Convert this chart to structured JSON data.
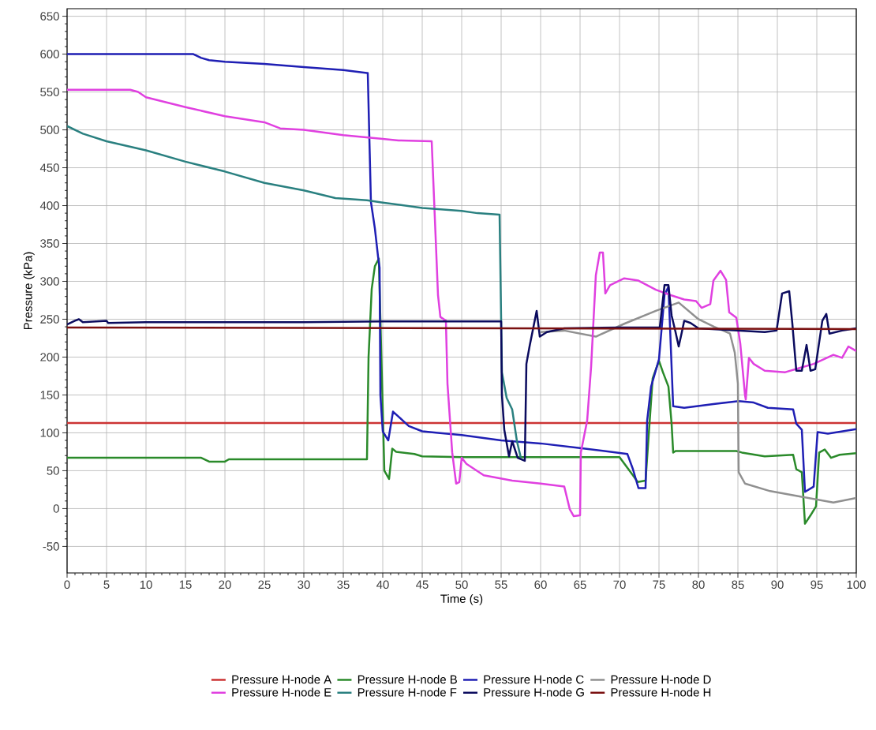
{
  "chart_data": {
    "type": "line",
    "xlabel": "Time (s)",
    "ylabel": "Pressure (kPa)",
    "xlim": [
      0,
      100
    ],
    "ylim": [
      -85,
      660
    ],
    "xticks": [
      0,
      5,
      10,
      15,
      20,
      25,
      30,
      35,
      40,
      45,
      50,
      55,
      60,
      65,
      70,
      75,
      80,
      85,
      90,
      95,
      100
    ],
    "yticks": [
      -50,
      0,
      50,
      100,
      150,
      200,
      250,
      300,
      350,
      400,
      450,
      500,
      550,
      600,
      650
    ],
    "grid": true,
    "legend": "bottom",
    "series": [
      {
        "name": "Pressure H-node A",
        "color": "#cc3333",
        "x": [
          0,
          100
        ],
        "values": [
          113,
          113
        ]
      },
      {
        "name": "Pressure H-node B",
        "color": "#2a8a2a",
        "x": [
          0,
          17,
          18,
          20,
          20.5,
          38,
          38.2,
          38.6,
          39,
          39.5,
          40.2,
          40.8,
          41.2,
          41.7,
          44,
          45,
          50,
          60,
          70,
          71.7,
          72.3,
          73.3,
          74.2,
          75,
          75.5,
          76.2,
          76.6,
          76.8,
          77.1,
          84.8,
          85.5,
          88.4,
          92,
          92.4,
          93.1,
          93.5,
          94.2,
          94.9,
          95.3,
          96,
          96.8,
          97.9,
          100
        ],
        "values": [
          67,
          67,
          62,
          62,
          65,
          65,
          200,
          290,
          320,
          330,
          50,
          39,
          79,
          75,
          72,
          69,
          68,
          68,
          68,
          44,
          35,
          37,
          172,
          195,
          180,
          161,
          112,
          74,
          76,
          76,
          74,
          69,
          71,
          52,
          48,
          -20,
          -9,
          3,
          74,
          78,
          67,
          71,
          73
        ]
      },
      {
        "name": "Pressure H-node C",
        "color": "#1f1fb4",
        "x": [
          0,
          16,
          17,
          18,
          20,
          25,
          30,
          35,
          38,
          38.1,
          38.5,
          39,
          39.4,
          39.6,
          39.7,
          40,
          40.7,
          41.3,
          43.3,
          45,
          47,
          50,
          55,
          60,
          65,
          71,
          71.7,
          72.4,
          73.3,
          73.5,
          74,
          75,
          75.7,
          76.2,
          76.6,
          76.8,
          78.2,
          81.9,
          85.1,
          87,
          88.8,
          92,
          92.4,
          93.1,
          93.5,
          94.6,
          95.1,
          96.4,
          100
        ],
        "values": [
          600,
          600,
          595,
          592,
          590,
          587,
          583,
          579,
          575,
          575,
          405,
          370,
          333,
          318,
          150,
          102,
          90,
          128,
          109,
          102,
          100,
          97,
          90,
          86,
          80,
          72,
          52,
          27,
          27,
          116,
          161,
          197,
          282,
          293,
          187,
          135,
          133,
          138,
          142,
          140,
          133,
          131,
          112,
          104,
          22,
          29,
          101,
          99,
          105
        ]
      },
      {
        "name": "Pressure H-node D",
        "color": "#909090",
        "x": [
          60,
          63,
          67,
          70.6,
          74.6,
          77.5,
          80,
          82,
          84,
          84.6,
          85,
          85.1,
          85.9,
          89.1,
          92.8,
          97.1,
          100
        ],
        "values": [
          233,
          235,
          227,
          244,
          261,
          272,
          250,
          240,
          231,
          206,
          165,
          48,
          33,
          23,
          16,
          8,
          14
        ]
      },
      {
        "name": "Pressure H-node E",
        "color": "#e040e0",
        "x": [
          0,
          8,
          9,
          10,
          15,
          20,
          25,
          27,
          30,
          35,
          40,
          42,
          46.2,
          47,
          47.3,
          48,
          48.2,
          48.8,
          49.3,
          49.7,
          50,
          50.6,
          52.8,
          56.4,
          60,
          63,
          63.7,
          64.2,
          65,
          65.1,
          65.9,
          66.4,
          67,
          67.5,
          67.9,
          68.2,
          68.8,
          70.6,
          72.4,
          74.6,
          76.4,
          78.2,
          79.7,
          80.4,
          81.5,
          81.9,
          82.8,
          83.5,
          83.9,
          84.8,
          85.3,
          85.9,
          86,
          86.4,
          87,
          88.4,
          91,
          94.6,
          97.1,
          98.2,
          99,
          100
        ],
        "values": [
          553,
          553,
          550,
          543,
          530,
          518,
          510,
          502,
          500,
          493,
          488,
          486,
          485,
          282,
          253,
          248,
          165,
          74,
          33,
          35,
          67,
          59,
          44,
          37,
          33,
          29,
          -1,
          -10,
          -9,
          74,
          116,
          187,
          308,
          338,
          338,
          284,
          295,
          304,
          301,
          289,
          282,
          276,
          274,
          265,
          270,
          301,
          314,
          302,
          259,
          252,
          218,
          150,
          144,
          199,
          191,
          182,
          180,
          191,
          203,
          199,
          214,
          208
        ]
      },
      {
        "name": "Pressure H-node F",
        "color": "#2a8080",
        "x": [
          0,
          2,
          5,
          10,
          15,
          20,
          25,
          30,
          34,
          38,
          40,
          45,
          50,
          52,
          54.8,
          55,
          55.1,
          55.7,
          56.4,
          57,
          57.5
        ],
        "values": [
          505,
          495,
          485,
          473,
          458,
          445,
          430,
          420,
          410,
          407,
          404,
          397,
          393,
          390,
          388,
          250,
          180,
          146,
          131,
          89,
          67
        ]
      },
      {
        "name": "Pressure H-node G",
        "color": "#0b0b5e",
        "x": [
          0,
          1,
          1.5,
          2,
          5,
          5.2,
          10,
          20,
          30,
          40,
          50,
          55,
          55.1,
          55.4,
          56,
          56.4,
          57.1,
          58,
          58.2,
          58.6,
          59.5,
          59.9,
          60.8,
          63,
          70,
          75.1,
          75.7,
          76.2,
          76.6,
          77.1,
          77.5,
          77.9,
          78.2,
          79,
          80,
          88.4,
          89.9,
          90.6,
          91.5,
          91.9,
          92.4,
          93.1,
          93.7,
          94.2,
          94.8,
          95.7,
          96.2,
          96.6,
          98.2,
          100
        ],
        "values": [
          243,
          248,
          250,
          246,
          248,
          245,
          246,
          246,
          246,
          247,
          247,
          247,
          150,
          104,
          69,
          89,
          67,
          63,
          191,
          214,
          261,
          227,
          233,
          238,
          239,
          239,
          295,
          295,
          255,
          233,
          214,
          233,
          248,
          245,
          238,
          233,
          235,
          284,
          287,
          244,
          182,
          182,
          216,
          182,
          184,
          248,
          257,
          231,
          235,
          238
        ]
      },
      {
        "name": "Pressure H-node H",
        "color": "#7a1010",
        "x": [
          0,
          100
        ],
        "values": [
          239,
          237
        ]
      }
    ]
  }
}
